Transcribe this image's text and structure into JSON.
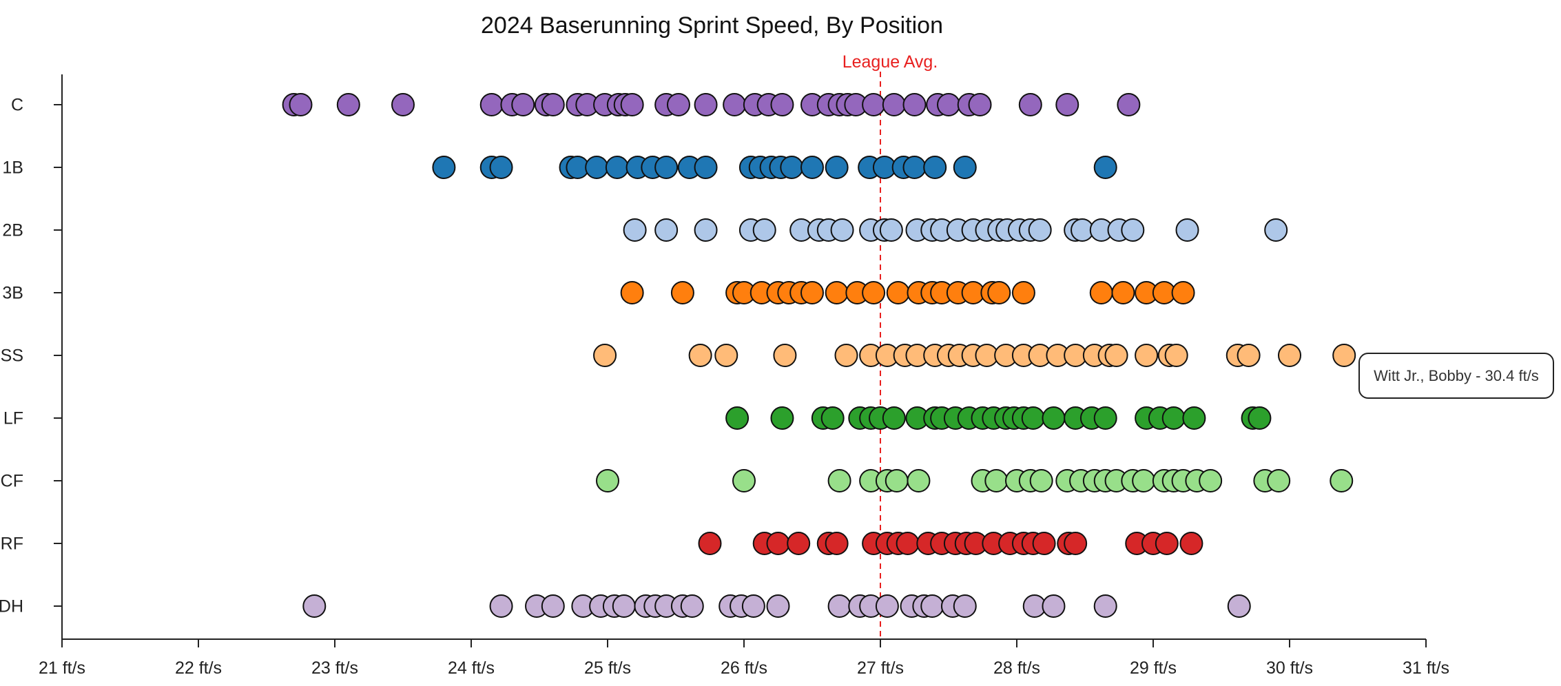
{
  "chart_data": {
    "type": "scatter",
    "title": "2024 Baserunning Sprint Speed, By Position",
    "xlabel": "",
    "ylabel": "",
    "xlim": [
      21,
      31
    ],
    "x_ticks": [
      21,
      22,
      23,
      24,
      25,
      26,
      27,
      28,
      29,
      30,
      31
    ],
    "x_tick_labels": [
      "21 ft/s",
      "22 ft/s",
      "23 ft/s",
      "24 ft/s",
      "25 ft/s",
      "26 ft/s",
      "27 ft/s",
      "28 ft/s",
      "29 ft/s",
      "30 ft/s",
      "31 ft/s"
    ],
    "categories": [
      "C",
      "1B",
      "2B",
      "3B",
      "SS",
      "LF",
      "CF",
      "RF",
      "DH"
    ],
    "grid": false,
    "reference_line": {
      "value": 27.0,
      "label": "League Avg.",
      "color": "#e8201f",
      "style": "dashed"
    },
    "series": [
      {
        "category": "C",
        "color": "#9467bd",
        "values": [
          22.7,
          22.75,
          23.1,
          23.5,
          24.15,
          24.3,
          24.38,
          24.55,
          24.6,
          24.78,
          24.85,
          24.98,
          25.08,
          25.13,
          25.18,
          25.43,
          25.52,
          25.72,
          25.93,
          26.08,
          26.18,
          26.28,
          26.5,
          26.62,
          26.7,
          26.76,
          26.82,
          26.95,
          27.1,
          27.25,
          27.42,
          27.5,
          27.65,
          27.73,
          28.1,
          28.37,
          28.82
        ]
      },
      {
        "category": "1B",
        "color": "#1f77b4",
        "values": [
          23.8,
          24.15,
          24.22,
          24.73,
          24.78,
          24.92,
          25.07,
          25.22,
          25.33,
          25.43,
          25.6,
          25.72,
          26.05,
          26.12,
          26.2,
          26.27,
          26.35,
          26.5,
          26.68,
          26.92,
          27.03,
          27.17,
          27.25,
          27.4,
          27.62,
          28.65
        ]
      },
      {
        "category": "2B",
        "color": "#aec7e8",
        "values": [
          25.2,
          25.43,
          25.72,
          26.05,
          26.15,
          26.42,
          26.55,
          26.62,
          26.72,
          26.93,
          27.03,
          27.08,
          27.27,
          27.38,
          27.45,
          27.57,
          27.68,
          27.78,
          27.87,
          27.93,
          28.02,
          28.1,
          28.17,
          28.43,
          28.48,
          28.62,
          28.75,
          28.85,
          29.25,
          29.9
        ]
      },
      {
        "category": "3B",
        "color": "#ff7f0e",
        "values": [
          25.18,
          25.55,
          25.95,
          26.0,
          26.13,
          26.25,
          26.33,
          26.42,
          26.5,
          26.68,
          26.83,
          26.95,
          27.13,
          27.28,
          27.38,
          27.45,
          27.57,
          27.68,
          27.82,
          27.87,
          28.05,
          28.62,
          28.78,
          28.95,
          29.08,
          29.22
        ]
      },
      {
        "category": "SS",
        "color": "#ffbb78",
        "values": [
          24.98,
          25.68,
          25.87,
          26.3,
          26.75,
          26.93,
          27.05,
          27.18,
          27.27,
          27.4,
          27.5,
          27.58,
          27.68,
          27.78,
          27.92,
          28.05,
          28.17,
          28.3,
          28.43,
          28.57,
          28.68,
          28.73,
          28.95,
          29.12,
          29.17,
          29.62,
          29.7,
          30.0,
          30.4
        ]
      },
      {
        "category": "LF",
        "color": "#2ca02c",
        "values": [
          25.95,
          26.28,
          26.58,
          26.65,
          26.85,
          26.93,
          27.0,
          27.1,
          27.27,
          27.4,
          27.45,
          27.55,
          27.65,
          27.75,
          27.83,
          27.92,
          27.98,
          28.05,
          28.12,
          28.27,
          28.43,
          28.55,
          28.65,
          28.95,
          29.05,
          29.15,
          29.3,
          29.73,
          29.78
        ]
      },
      {
        "category": "CF",
        "color": "#98df8a",
        "values": [
          25.0,
          26.0,
          26.7,
          26.93,
          27.05,
          27.12,
          27.28,
          27.75,
          27.85,
          28.0,
          28.1,
          28.18,
          28.37,
          28.47,
          28.57,
          28.65,
          28.73,
          28.85,
          28.93,
          29.08,
          29.15,
          29.22,
          29.32,
          29.42,
          29.82,
          29.92,
          30.38
        ]
      },
      {
        "category": "RF",
        "color": "#d62728",
        "values": [
          25.75,
          26.15,
          26.25,
          26.4,
          26.62,
          26.68,
          26.95,
          27.05,
          27.13,
          27.2,
          27.35,
          27.45,
          27.55,
          27.63,
          27.7,
          27.83,
          27.95,
          28.05,
          28.12,
          28.2,
          28.38,
          28.43,
          28.88,
          29.0,
          29.1,
          29.28
        ]
      },
      {
        "category": "DH",
        "color": "#c5b0d5",
        "values": [
          22.85,
          24.22,
          24.48,
          24.6,
          24.82,
          24.95,
          25.05,
          25.12,
          25.28,
          25.35,
          25.43,
          25.55,
          25.62,
          25.9,
          25.98,
          26.07,
          26.25,
          26.7,
          26.85,
          26.93,
          27.05,
          27.23,
          27.32,
          27.38,
          27.53,
          27.62,
          28.13,
          28.27,
          28.65,
          29.63
        ]
      }
    ]
  },
  "tooltip": {
    "text": "Witt Jr., Bobby - 30.4 ft/s"
  }
}
